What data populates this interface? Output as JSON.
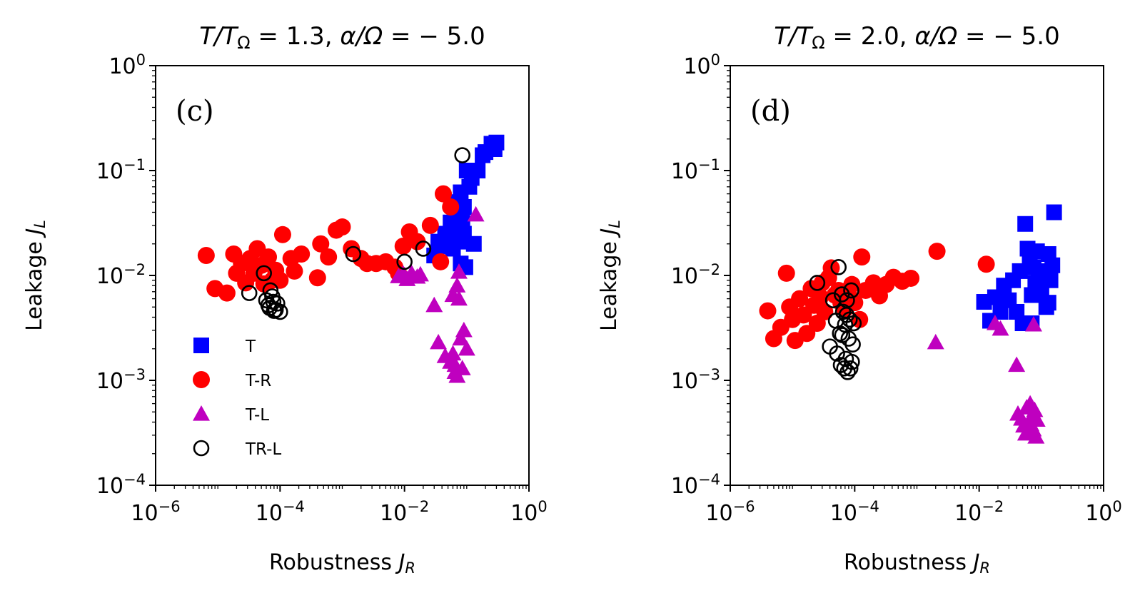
{
  "chart_data": [
    {
      "type": "scatter",
      "panel_tag": "(c)",
      "title": "T/T_Ω = 1.3, α/Ω = −5.0",
      "title_parts": {
        "T1": "T/T",
        "sub1": "Ω",
        "mid": " = 1.3, ",
        "a": "α/Ω",
        "rest": " = − 5.0"
      },
      "xlabel": "Robustness J_R",
      "ylabel": "Leakage J_L",
      "xscale": "log",
      "yscale": "log",
      "xlim": [
        1e-06,
        1
      ],
      "ylim": [
        0.0001,
        1
      ],
      "x_ticks": [
        "10^-6",
        "10^-4",
        "10^-2",
        "10^0"
      ],
      "y_ticks": [
        "10^-4",
        "10^-3",
        "10^-2",
        "10^-1",
        "10^0"
      ],
      "grid": false,
      "legend": {
        "placement": "lower-left",
        "entries": [
          "T",
          "T-R",
          "T-L",
          "TR-L"
        ]
      },
      "series": [
        {
          "name": "T",
          "marker": "square",
          "color": "#0000ff",
          "points": [
            [
              0.03,
              0.0155
            ],
            [
              0.035,
              0.021
            ],
            [
              0.04,
              0.019
            ],
            [
              0.045,
              0.025
            ],
            [
              0.05,
              0.02
            ],
            [
              0.055,
              0.032
            ],
            [
              0.06,
              0.018
            ],
            [
              0.065,
              0.05
            ],
            [
              0.07,
              0.028
            ],
            [
              0.075,
              0.021
            ],
            [
              0.08,
              0.062
            ],
            [
              0.085,
              0.035
            ],
            [
              0.09,
              0.045
            ],
            [
              0.095,
              0.012
            ],
            [
              0.1,
              0.1
            ],
            [
              0.11,
              0.07
            ],
            [
              0.12,
              0.085
            ],
            [
              0.13,
              0.02
            ],
            [
              0.15,
              0.1
            ],
            [
              0.18,
              0.14
            ],
            [
              0.2,
              0.15
            ],
            [
              0.25,
              0.18
            ],
            [
              0.3,
              0.185
            ],
            [
              0.28,
              0.16
            ],
            [
              0.08,
              0.013
            ],
            [
              0.09,
              0.025
            ],
            [
              0.06,
              0.03
            ],
            [
              0.07,
              0.045
            ]
          ]
        },
        {
          "name": "T-R",
          "marker": "circle",
          "color": "#ff0000",
          "points": [
            [
              6.5e-06,
              0.0155
            ],
            [
              9e-06,
              0.0075
            ],
            [
              1.4e-05,
              0.0068
            ],
            [
              1.8e-05,
              0.016
            ],
            [
              2e-05,
              0.0105
            ],
            [
              2.4e-05,
              0.013
            ],
            [
              2.8e-05,
              0.0085
            ],
            [
              3.3e-05,
              0.0145
            ],
            [
              3.8e-05,
              0.0105
            ],
            [
              4.3e-05,
              0.018
            ],
            [
              5e-05,
              0.0125
            ],
            [
              5.5e-05,
              0.0083
            ],
            [
              6.5e-05,
              0.015
            ],
            [
              7.5e-05,
              0.009
            ],
            [
              8.5e-05,
              0.0112
            ],
            [
              0.0001,
              0.009
            ],
            [
              0.00011,
              0.0245
            ],
            [
              0.00015,
              0.0145
            ],
            [
              0.00017,
              0.011
            ],
            [
              0.00022,
              0.016
            ],
            [
              0.0004,
              0.0095
            ],
            [
              0.00045,
              0.02
            ],
            [
              0.0006,
              0.015
            ],
            [
              0.0008,
              0.027
            ],
            [
              0.001,
              0.029
            ],
            [
              0.0014,
              0.018
            ],
            [
              0.002,
              0.0145
            ],
            [
              0.0025,
              0.013
            ],
            [
              0.0035,
              0.013
            ],
            [
              0.005,
              0.0135
            ],
            [
              0.007,
              0.012
            ],
            [
              0.008,
              0.0105
            ],
            [
              0.0095,
              0.019
            ],
            [
              0.012,
              0.026
            ],
            [
              0.016,
              0.021
            ],
            [
              0.026,
              0.03
            ],
            [
              0.038,
              0.0135
            ],
            [
              0.042,
              0.06
            ],
            [
              0.055,
              0.045
            ]
          ]
        },
        {
          "name": "T-L",
          "marker": "triangle",
          "color": "#bf00bf",
          "points": [
            [
              0.008,
              0.0098
            ],
            [
              0.0095,
              0.0104
            ],
            [
              0.011,
              0.0092
            ],
            [
              0.013,
              0.0105
            ],
            [
              0.016,
              0.0097
            ],
            [
              0.018,
              0.0102
            ],
            [
              0.03,
              0.0052
            ],
            [
              0.035,
              0.0023
            ],
            [
              0.045,
              0.0017
            ],
            [
              0.055,
              0.0015
            ],
            [
              0.06,
              0.0065
            ],
            [
              0.065,
              0.0012
            ],
            [
              0.07,
              0.008
            ],
            [
              0.075,
              0.0108
            ],
            [
              0.08,
              0.0025
            ],
            [
              0.085,
              0.0013
            ],
            [
              0.09,
              0.003
            ],
            [
              0.1,
              0.002
            ],
            [
              0.14,
              0.038
            ],
            [
              0.075,
              0.006
            ],
            [
              0.07,
              0.0011
            ],
            [
              0.065,
              0.0014
            ],
            [
              0.06,
              0.0018
            ]
          ]
        },
        {
          "name": "TR-L",
          "marker": "open-circle",
          "color": "#000000",
          "points": [
            [
              3.2e-05,
              0.0068
            ],
            [
              5.5e-05,
              0.0105
            ],
            [
              6e-05,
              0.0058
            ],
            [
              6.5e-05,
              0.0052
            ],
            [
              7e-05,
              0.0072
            ],
            [
              7.5e-05,
              0.0063
            ],
            [
              8e-05,
              0.0046
            ],
            [
              8.5e-05,
              0.0047
            ],
            [
              9e-05,
              0.0054
            ],
            [
              0.0001,
              0.0045
            ],
            [
              6.8e-05,
              0.0049
            ],
            [
              7.8e-05,
              0.0056
            ],
            [
              0.0015,
              0.016
            ],
            [
              0.01,
              0.0135
            ],
            [
              0.02,
              0.018
            ],
            [
              0.085,
              0.14
            ]
          ]
        }
      ]
    },
    {
      "type": "scatter",
      "panel_tag": "(d)",
      "title": "T/T_Ω = 2.0, α/Ω = −5.0",
      "title_parts": {
        "T1": "T/T",
        "sub1": "Ω",
        "mid": " = 2.0, ",
        "a": "α/Ω",
        "rest": " = − 5.0"
      },
      "xlabel": "Robustness J_R",
      "ylabel": "Leakage J_L",
      "xscale": "log",
      "yscale": "log",
      "xlim": [
        1e-06,
        1
      ],
      "ylim": [
        0.0001,
        1
      ],
      "x_ticks": [
        "10^-6",
        "10^-4",
        "10^-2",
        "10^0"
      ],
      "y_ticks": [
        "10^-4",
        "10^-3",
        "10^-2",
        "10^-1",
        "10^0"
      ],
      "grid": false,
      "series": [
        {
          "name": "T",
          "marker": "square",
          "color": "#0000ff",
          "points": [
            [
              0.012,
              0.0056
            ],
            [
              0.015,
              0.0037
            ],
            [
              0.018,
              0.0062
            ],
            [
              0.022,
              0.0045
            ],
            [
              0.025,
              0.008
            ],
            [
              0.03,
              0.0058
            ],
            [
              0.035,
              0.009
            ],
            [
              0.04,
              0.0045
            ],
            [
              0.045,
              0.011
            ],
            [
              0.05,
              0.0035
            ],
            [
              0.055,
              0.031
            ],
            [
              0.06,
              0.018
            ],
            [
              0.065,
              0.0145
            ],
            [
              0.07,
              0.0065
            ],
            [
              0.075,
              0.012
            ],
            [
              0.08,
              0.0085
            ],
            [
              0.085,
              0.017
            ],
            [
              0.09,
              0.0095
            ],
            [
              0.1,
              0.0065
            ],
            [
              0.11,
              0.011
            ],
            [
              0.12,
              0.005
            ],
            [
              0.13,
              0.016
            ],
            [
              0.14,
              0.009
            ],
            [
              0.15,
              0.0125
            ],
            [
              0.16,
              0.04
            ],
            [
              0.13,
              0.0055
            ],
            [
              0.07,
              0.0035
            ],
            [
              0.095,
              0.0075
            ]
          ]
        },
        {
          "name": "T-R",
          "marker": "circle",
          "color": "#ff0000",
          "points": [
            [
              4e-06,
              0.0046
            ],
            [
              5e-06,
              0.0025
            ],
            [
              6.5e-06,
              0.0032
            ],
            [
              8e-06,
              0.0105
            ],
            [
              9e-06,
              0.005
            ],
            [
              1e-05,
              0.0038
            ],
            [
              1.1e-05,
              0.0024
            ],
            [
              1.3e-05,
              0.006
            ],
            [
              1.5e-05,
              0.0042
            ],
            [
              1.7e-05,
              0.0028
            ],
            [
              2e-05,
              0.0075
            ],
            [
              2.2e-05,
              0.0052
            ],
            [
              2.5e-05,
              0.0035
            ],
            [
              2.8e-05,
              0.0062
            ],
            [
              3e-05,
              0.0085
            ],
            [
              3.3e-05,
              0.0045
            ],
            [
              3.8e-05,
              0.0095
            ],
            [
              4.2e-05,
              0.0118
            ],
            [
              4.8e-05,
              0.0065
            ],
            [
              5.5e-05,
              0.0072
            ],
            [
              6e-05,
              0.0055
            ],
            [
              7e-05,
              0.0048
            ],
            [
              8e-05,
              0.0065
            ],
            [
              9e-05,
              0.0082
            ],
            [
              0.0001,
              0.0055
            ],
            [
              0.00012,
              0.0038
            ],
            [
              0.00013,
              0.015
            ],
            [
              0.00015,
              0.0072
            ],
            [
              0.0002,
              0.0085
            ],
            [
              0.00025,
              0.0064
            ],
            [
              0.00032,
              0.0082
            ],
            [
              0.00042,
              0.0096
            ],
            [
              0.00058,
              0.0088
            ],
            [
              0.0008,
              0.0094
            ],
            [
              0.0021,
              0.017
            ],
            [
              0.013,
              0.0128
            ]
          ]
        },
        {
          "name": "T-L",
          "marker": "triangle",
          "color": "#bf00bf",
          "points": [
            [
              0.002,
              0.0023
            ],
            [
              0.018,
              0.0035
            ],
            [
              0.022,
              0.0031
            ],
            [
              0.04,
              0.0014
            ],
            [
              0.042,
              0.00048
            ],
            [
              0.048,
              0.00043
            ],
            [
              0.052,
              0.00037
            ],
            [
              0.058,
              0.00055
            ],
            [
              0.062,
              0.00032
            ],
            [
              0.066,
              0.0006
            ],
            [
              0.07,
              0.00045
            ],
            [
              0.074,
              0.00034
            ],
            [
              0.078,
              0.00052
            ],
            [
              0.082,
              0.00029
            ],
            [
              0.085,
              0.00042
            ],
            [
              0.075,
              0.0034
            ],
            [
              0.056,
              0.00031
            ],
            [
              0.068,
              0.00038
            ]
          ]
        },
        {
          "name": "TR-L",
          "marker": "open-circle",
          "color": "#000000",
          "points": [
            [
              2.5e-05,
              0.0085
            ],
            [
              4e-05,
              0.0021
            ],
            [
              4.5e-05,
              0.0058
            ],
            [
              5e-05,
              0.0037
            ],
            [
              5.2e-05,
              0.0018
            ],
            [
              5.5e-05,
              0.012
            ],
            [
              5.8e-05,
              0.0028
            ],
            [
              6e-05,
              0.0014
            ],
            [
              6.2e-05,
              0.0066
            ],
            [
              6.5e-05,
              0.0045
            ],
            [
              6.8e-05,
              0.0013
            ],
            [
              7e-05,
              0.0034
            ],
            [
              7.2e-05,
              0.0016
            ],
            [
              7.5e-05,
              0.0058
            ],
            [
              7.7e-05,
              0.0012
            ],
            [
              8e-05,
              0.0025
            ],
            [
              8.3e-05,
              0.0038
            ],
            [
              8.5e-05,
              0.0013
            ],
            [
              8.8e-05,
              0.0072
            ],
            [
              9e-05,
              0.0015
            ],
            [
              9.3e-05,
              0.0022
            ],
            [
              9.6e-05,
              0.0035
            ],
            [
              6.3e-05,
              0.0027
            ],
            [
              7.4e-05,
              0.0042
            ]
          ]
        }
      ]
    }
  ]
}
